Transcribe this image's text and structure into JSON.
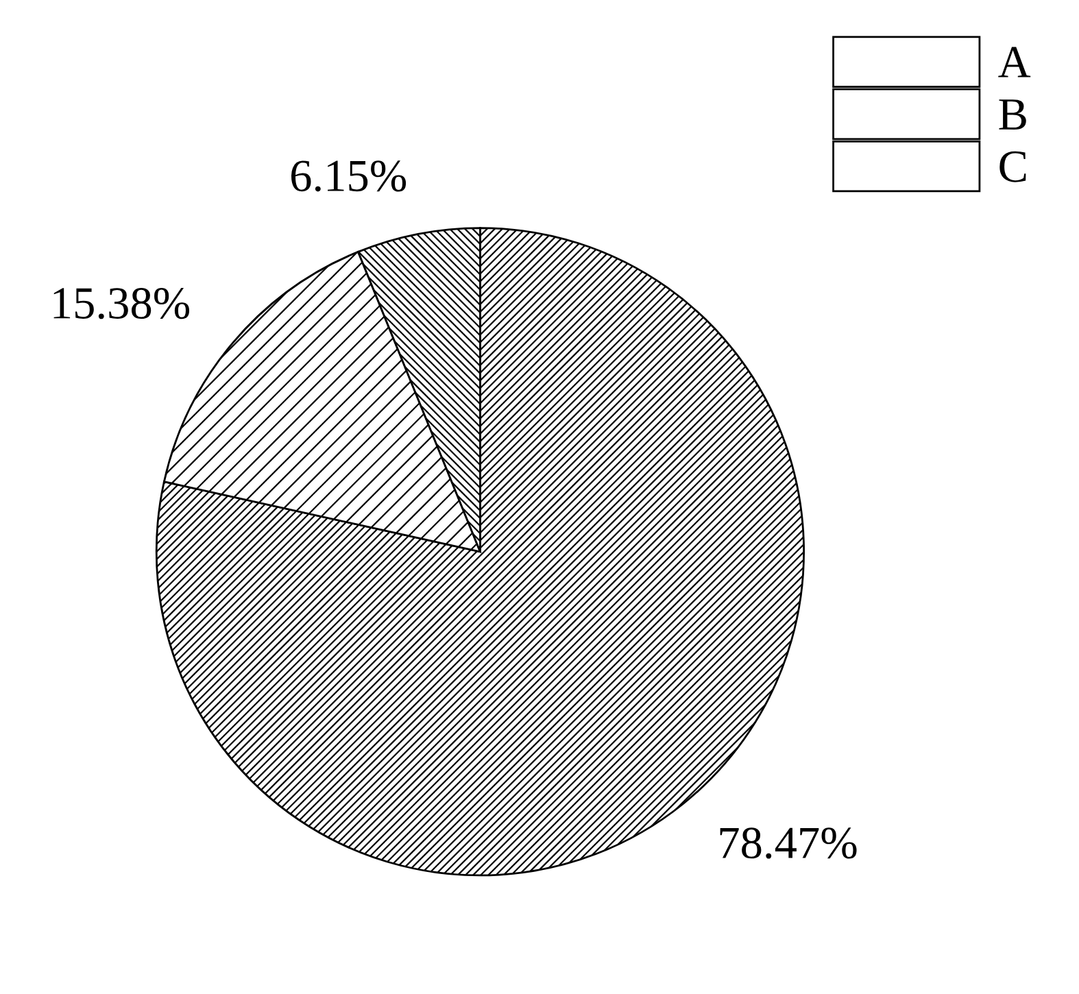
{
  "chart_data": {
    "type": "pie",
    "categories": [
      "A",
      "B",
      "C"
    ],
    "values": [
      78.47,
      15.38,
      6.15
    ],
    "colors": [
      "#ffffff",
      "#ffffff",
      "#ffffff"
    ],
    "value_labels": [
      "78.47%",
      "15.38%",
      "6.15%"
    ],
    "legend": "top right"
  }
}
